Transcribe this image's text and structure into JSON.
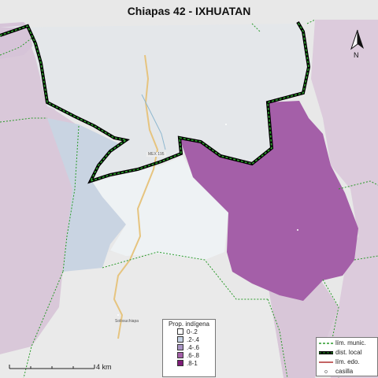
{
  "title": "Chiapas 42 - IXHUATAN",
  "north_label": "N",
  "scale_label": "4 km",
  "road_label": "MEX 195",
  "town_label": "Solosuchiapa",
  "legend": {
    "title": "Prop. indígena",
    "items": [
      {
        "label": "0-.2",
        "color": "#ffffff"
      },
      {
        "label": ".2-.4",
        "color": "#c6d2e4"
      },
      {
        "label": ".4-.6",
        "color": "#a995c5"
      },
      {
        "label": ".6-.8",
        "color": "#a45fa8"
      },
      {
        "label": ".8-1",
        "color": "#7e1c78"
      }
    ]
  },
  "line_legend": [
    {
      "label": "lím. munic.",
      "icon": "dashed-green-line"
    },
    {
      "label": "dist. local",
      "icon": "thick-black-green-line"
    },
    {
      "label": "lím. edo.",
      "icon": "red-line"
    },
    {
      "label": "casilla",
      "icon": "small-circle"
    }
  ],
  "colors": {
    "background_gray": "#e6e6e6",
    "outside_purple": "#d8c7d8",
    "district_gray": "#e4e7ea",
    "light_blue": "#c9d4e2",
    "very_light_blue": "#eef1f3",
    "main_purple": "#a45fa8",
    "district_line": "#0a5a0a",
    "municipal_line": "#2a9a2a",
    "road": "#e9c98a"
  }
}
